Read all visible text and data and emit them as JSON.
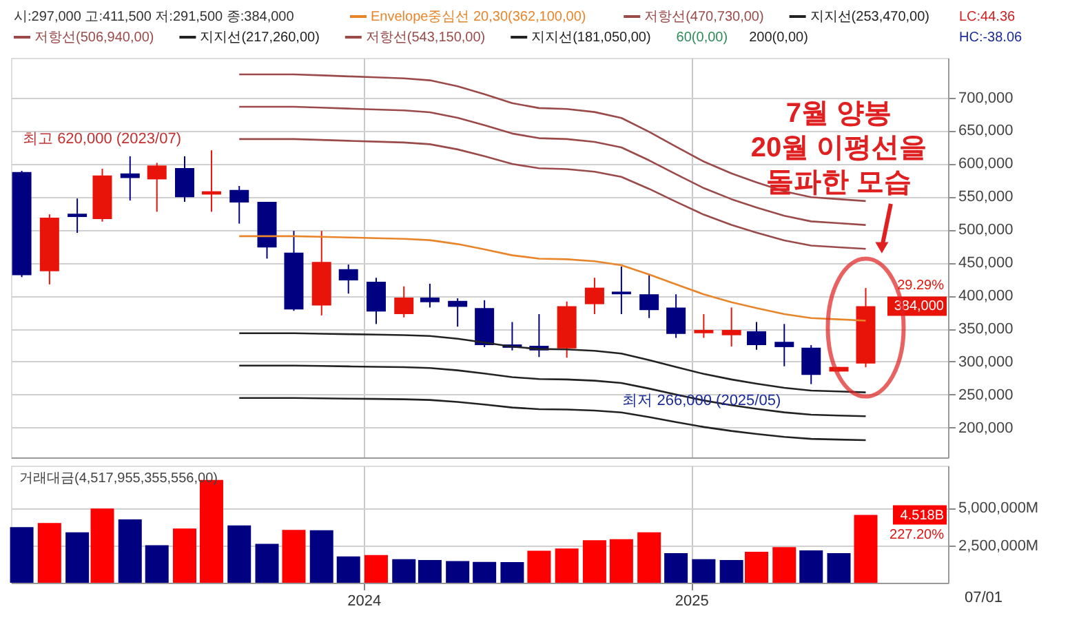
{
  "chart_data": [
    {
      "type": "candlestick",
      "x": [
        "2022-12-15",
        "2023-01-15",
        "2023-02-15",
        "2023-03-15",
        "2023-04-15",
        "2023-05-15",
        "2023-06-15",
        "2023-07-15",
        "2023-08-15",
        "2023-09-15",
        "2023-10-15",
        "2023-11-15",
        "2023-12-15",
        "2024-01-15",
        "2024-02-15",
        "2024-03-15",
        "2024-04-15",
        "2024-05-15",
        "2024-06-15",
        "2024-07-15",
        "2024-08-15",
        "2024-09-15",
        "2024-10-15",
        "2024-11-15",
        "2024-12-15",
        "2025-01-15",
        "2025-02-15",
        "2025-03-15",
        "2025-04-15",
        "2025-05-15",
        "2025-06-15",
        "2025-07-15"
      ],
      "ohlc": [
        [
          587000,
          589000,
          428000,
          431000
        ],
        [
          437000,
          523000,
          417000,
          518000
        ],
        [
          524000,
          547000,
          495000,
          519000
        ],
        [
          516000,
          592000,
          512000,
          582000
        ],
        [
          585000,
          611000,
          544000,
          578000
        ],
        [
          576000,
          601000,
          527000,
          597000
        ],
        [
          593000,
          611000,
          542000,
          549000
        ],
        [
          553000,
          620000,
          527000,
          558000
        ],
        [
          560000,
          566000,
          509000,
          541000
        ],
        [
          542000,
          542000,
          456000,
          473000
        ],
        [
          465000,
          498000,
          377000,
          379000
        ],
        [
          385000,
          498000,
          370000,
          451000
        ],
        [
          440000,
          447000,
          403000,
          423000
        ],
        [
          421000,
          427000,
          357000,
          376000
        ],
        [
          372000,
          414000,
          367000,
          397000
        ],
        [
          397000,
          418000,
          382000,
          390000
        ],
        [
          392000,
          396000,
          353000,
          383000
        ],
        [
          381000,
          393000,
          322000,
          325000
        ],
        [
          326000,
          360000,
          317000,
          321000
        ],
        [
          324000,
          372000,
          307000,
          317000
        ],
        [
          320000,
          391000,
          306000,
          384000
        ],
        [
          387000,
          427000,
          372000,
          412000
        ],
        [
          406000,
          444000,
          372000,
          402000
        ],
        [
          402000,
          433000,
          366000,
          378000
        ],
        [
          382000,
          402000,
          336000,
          342000
        ],
        [
          343000,
          372000,
          336000,
          348000
        ],
        [
          340000,
          382000,
          323000,
          348000
        ],
        [
          346000,
          360000,
          318000,
          325000
        ],
        [
          330000,
          357000,
          293000,
          322000
        ],
        [
          321000,
          325000,
          266000,
          280000
        ],
        [
          285000,
          292000,
          285000,
          292000
        ],
        [
          297000,
          411500,
          291500,
          384000
        ]
      ],
      "colors": [
        "#000080",
        "#e8140a",
        "#000080",
        "#e8140a",
        "#000080",
        "#e8140a",
        "#000080",
        "#e8140a",
        "#000080",
        "#000080",
        "#000080",
        "#e8140a",
        "#000080",
        "#000080",
        "#e8140a",
        "#000080",
        "#000080",
        "#000080",
        "#000080",
        "#000080",
        "#e8140a",
        "#e8140a",
        "#000080",
        "#000080",
        "#000080",
        "#e8140a",
        "#e8140a",
        "#000080",
        "#000080",
        "#000080",
        "#e8140a",
        "#e8140a"
      ],
      "series": [
        {
          "name": "Envelope중심선 20,30(362,100,00)",
          "type": "line",
          "color": "#e8852a",
          "values": [
            null,
            null,
            null,
            null,
            null,
            null,
            null,
            null,
            490000,
            490000,
            490000,
            489000,
            488000,
            487000,
            486000,
            484000,
            478000,
            470000,
            461000,
            456000,
            455000,
            452000,
            446000,
            432000,
            417000,
            402000,
            390000,
            381000,
            372000,
            366000,
            364000,
            362100
          ]
        },
        {
          "name": "저항선(470,730,00)",
          "type": "line",
          "color": "#9b4a4a",
          "values": [
            null,
            null,
            null,
            null,
            null,
            null,
            null,
            null,
            637000,
            637000,
            637000,
            635700,
            634400,
            633100,
            631800,
            629200,
            621400,
            611000,
            599300,
            592800,
            591500,
            587600,
            579800,
            561600,
            542100,
            522600,
            507000,
            495300,
            483600,
            475800,
            473200,
            470730
          ]
        },
        {
          "name": "지지선(253,470,00)",
          "type": "line",
          "color": "#222222",
          "values": [
            null,
            null,
            null,
            null,
            null,
            null,
            null,
            null,
            343000,
            343000,
            343000,
            342300,
            341600,
            340900,
            340200,
            338800,
            334600,
            329000,
            322700,
            319200,
            318500,
            316400,
            312200,
            302400,
            291900,
            281400,
            273000,
            266700,
            260400,
            256200,
            254800,
            253470
          ]
        },
        {
          "name": "저항선(506,940,00)",
          "type": "line",
          "color": "#9b4a4a",
          "values": [
            null,
            null,
            null,
            null,
            null,
            null,
            null,
            null,
            686000,
            686000,
            686000,
            684600,
            683200,
            681800,
            680400,
            677600,
            669200,
            658000,
            645400,
            638400,
            637000,
            632800,
            624400,
            604800,
            583800,
            562800,
            546000,
            533400,
            520800,
            512400,
            509600,
            506940
          ]
        },
        {
          "name": "지지선(217,260,00)",
          "type": "line",
          "color": "#222222",
          "values": [
            null,
            null,
            null,
            null,
            null,
            null,
            null,
            null,
            294000,
            294000,
            294000,
            293400,
            292800,
            292200,
            291600,
            290400,
            286800,
            282000,
            276600,
            273600,
            273000,
            271200,
            267600,
            259200,
            250200,
            241200,
            234000,
            228600,
            223200,
            219600,
            218400,
            217260
          ]
        },
        {
          "name": "저항선(543,150,00)",
          "type": "line",
          "color": "#9b4a4a",
          "values": [
            null,
            null,
            null,
            null,
            null,
            null,
            null,
            null,
            735000,
            735000,
            735000,
            733500,
            732000,
            730500,
            729000,
            726000,
            717000,
            705000,
            691500,
            684000,
            682500,
            678000,
            669000,
            648000,
            625500,
            603000,
            585000,
            571500,
            558000,
            549000,
            546000,
            543150
          ]
        },
        {
          "name": "지지선(181,050,00)",
          "type": "line",
          "color": "#222222",
          "values": [
            null,
            null,
            null,
            null,
            null,
            null,
            null,
            null,
            245000,
            245000,
            245000,
            244500,
            244000,
            243500,
            243000,
            242000,
            239000,
            235000,
            230500,
            228000,
            227500,
            226000,
            223000,
            216000,
            208500,
            201000,
            195000,
            190500,
            186000,
            183000,
            182000,
            181050
          ]
        }
      ],
      "xlim": [
        "2022-12-03",
        "2025-10-15"
      ],
      "xticks": [
        {
          "value": "2024-01-01",
          "label": null
        },
        {
          "value": "2025-01-01",
          "label": null
        }
      ],
      "ylim": [
        155000,
        760000
      ],
      "yticks": [
        {
          "value": 200000,
          "label": "200,000"
        },
        {
          "value": 250000,
          "label": "250,000"
        },
        {
          "value": 300000,
          "label": "300,000"
        },
        {
          "value": 350000,
          "label": "350,000"
        },
        {
          "value": 400000,
          "label": "400,000"
        },
        {
          "value": 450000,
          "label": "450,000"
        },
        {
          "value": 500000,
          "label": "500,000"
        },
        {
          "value": 550000,
          "label": "550,000"
        },
        {
          "value": 600000,
          "label": "600,000"
        },
        {
          "value": 650000,
          "label": "650,000"
        },
        {
          "value": 700000,
          "label": "700,000"
        }
      ],
      "grid": true,
      "legend": "top",
      "tick_labels": "y",
      "annotations": [
        "시:297,000 고:411,500 저:291,500 종:384,000",
        "60(0,00)",
        "200(0,00)",
        "LC:44.36",
        "HC:-38.06",
        "384,000",
        "29.29%",
        {
          "text": "최고 620,000 (2023/07)",
          "x": "2023-07-15",
          "y": 620000
        },
        {
          "text": "최저 266,000 (2025/05)",
          "x": "2025-05-15",
          "y": 266000
        },
        "7월 양봉\n20월 이평선을\n돌파한 모습"
      ]
    },
    {
      "type": "bar",
      "x": [
        "2022-12-15",
        "2023-01-15",
        "2023-02-15",
        "2023-03-15",
        "2023-04-15",
        "2023-05-15",
        "2023-06-15",
        "2023-07-15",
        "2023-08-15",
        "2023-09-15",
        "2023-10-15",
        "2023-11-15",
        "2023-12-15",
        "2024-01-15",
        "2024-02-15",
        "2024-03-15",
        "2024-04-15",
        "2024-05-15",
        "2024-06-15",
        "2024-07-15",
        "2024-08-15",
        "2024-09-15",
        "2024-10-15",
        "2024-11-15",
        "2024-12-15",
        "2025-01-15",
        "2025-02-15",
        "2025-03-15",
        "2025-04-15",
        "2025-05-15",
        "2025-06-15",
        "2025-07-15"
      ],
      "series": [
        {
          "name": "거래대금(4,517,955,355,556,00)",
          "values": [
            3700000,
            3980000,
            3360000,
            4940000,
            4220000,
            2500000,
            3610000,
            6850000,
            3820000,
            2590000,
            3520000,
            3500000,
            1760000,
            1850000,
            1570000,
            1510000,
            1440000,
            1390000,
            1380000,
            2130000,
            2280000,
            2830000,
            2900000,
            3360000,
            1970000,
            1570000,
            1510000,
            2060000,
            2370000,
            2160000,
            1970000,
            4517955
          ],
          "colors": [
            "#000080",
            "#ff0000",
            "#000080",
            "#ff0000",
            "#000080",
            "#000080",
            "#ff0000",
            "#ff0000",
            "#000080",
            "#000080",
            "#ff0000",
            "#000080",
            "#000080",
            "#ff0000",
            "#000080",
            "#000080",
            "#000080",
            "#000080",
            "#000080",
            "#ff0000",
            "#ff0000",
            "#ff0000",
            "#ff0000",
            "#ff0000",
            "#000080",
            "#000080",
            "#000080",
            "#ff0000",
            "#ff0000",
            "#000080",
            "#000080",
            "#ff0000"
          ]
        }
      ],
      "xlim": [
        "2022-12-03",
        "2025-10-15"
      ],
      "xticks": [
        {
          "value": "2024-01-01",
          "label": "2024"
        },
        {
          "value": "2025-01-01",
          "label": "2025"
        }
      ],
      "ylim": [
        0,
        7800000
      ],
      "yticks": [
        {
          "value": 2500000,
          "label": "2,500,000M"
        },
        {
          "value": 5000000,
          "label": "5,000,000M"
        }
      ],
      "grid": true,
      "legend": "top left",
      "annotations": [
        "4.518B",
        "227.20%",
        "07/01"
      ]
    }
  ]
}
